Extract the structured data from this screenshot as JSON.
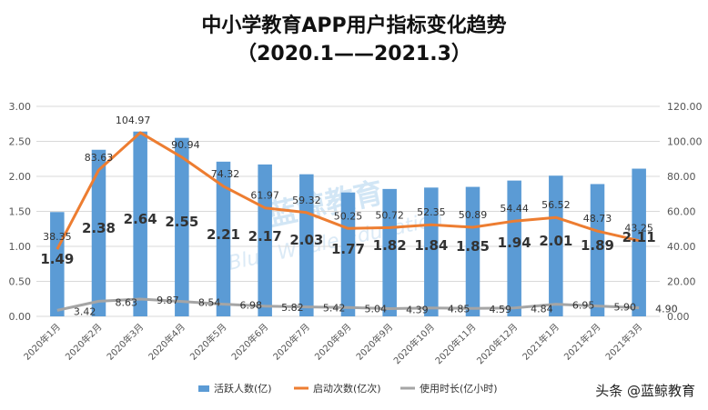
{
  "chart_data": {
    "type": "bar",
    "title": "中小学教育APP用户指标变化趋势",
    "subtitle": "（2020.1——2021.3）",
    "categories": [
      "2020年1月",
      "2020年2月",
      "2020年3月",
      "2020年4月",
      "2020年5月",
      "2020年6月",
      "2020年7月",
      "2020年8月",
      "2020年9月",
      "2020年10月",
      "2020年11月",
      "2020年12月",
      "2021年1月",
      "2021年2月",
      "2021年3月"
    ],
    "series": [
      {
        "name": "活跃人数(亿)",
        "type": "bar",
        "axis": "left",
        "color": "#5b9bd5",
        "values": [
          1.49,
          2.38,
          2.64,
          2.55,
          2.21,
          2.17,
          2.03,
          1.77,
          1.82,
          1.84,
          1.85,
          1.94,
          2.01,
          1.89,
          2.11
        ]
      },
      {
        "name": "启动次数(亿次)",
        "type": "line",
        "axis": "right",
        "color": "#ed7d31",
        "values": [
          38.35,
          83.63,
          104.97,
          90.94,
          74.32,
          61.97,
          59.32,
          50.25,
          50.72,
          52.35,
          50.89,
          54.44,
          56.52,
          48.73,
          43.25
        ]
      },
      {
        "name": "使用时长(亿小时)",
        "type": "line",
        "axis": "right",
        "color": "#a5a5a5",
        "values": [
          3.42,
          8.63,
          9.87,
          8.54,
          6.98,
          5.82,
          5.42,
          5.04,
          4.39,
          4.85,
          4.59,
          4.84,
          6.95,
          5.9,
          4.9
        ]
      }
    ],
    "y_left": {
      "ylim": [
        0,
        3.0
      ],
      "ticks": [
        "0.00",
        "0.50",
        "1.00",
        "1.50",
        "2.00",
        "2.50",
        "3.00"
      ]
    },
    "y_right": {
      "ylim": [
        0,
        120
      ],
      "ticks": [
        "0.00",
        "20.00",
        "40.00",
        "60.00",
        "80.00",
        "100.00",
        "120.00"
      ]
    },
    "grid": true,
    "legend": "bottom"
  },
  "watermark": {
    "text": "蓝鲸教育",
    "subtext": "Blue Whale Education"
  },
  "footer": {
    "text": "头条 @蓝鲸教育"
  }
}
